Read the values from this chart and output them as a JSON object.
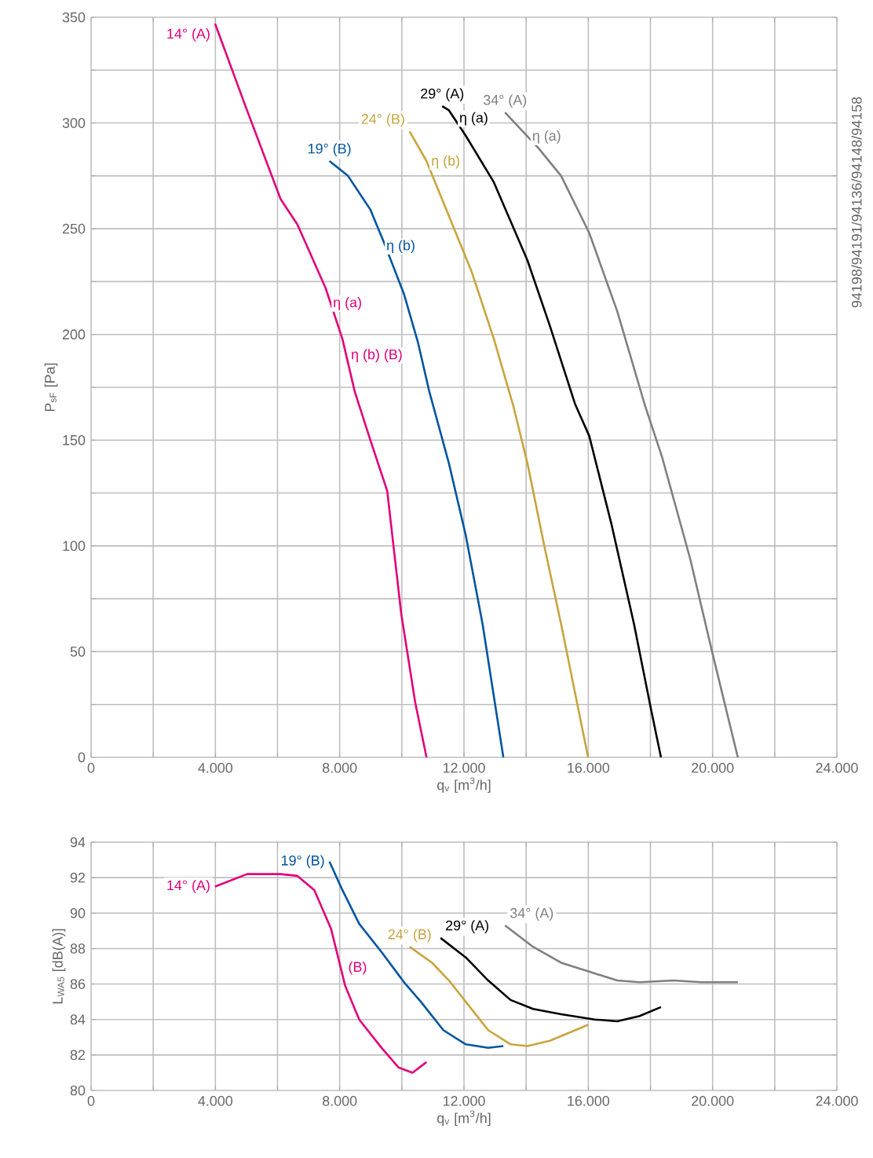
{
  "chart_data": [
    {
      "type": "line",
      "xlabel": "q$_{v}$ [m$^{3}$/h]",
      "ylabel": "P$_{sF}$ [Pa]",
      "grid": true,
      "xlim": [
        0,
        24000
      ],
      "ylim": [
        0,
        350
      ],
      "xticks": [
        0,
        {
          "value": 2000,
          "label": null
        },
        {
          "value": 4000,
          "label": "4.000"
        },
        {
          "value": 6000,
          "label": null
        },
        {
          "value": 8000,
          "label": "8.000"
        },
        {
          "value": 10000,
          "label": null
        },
        {
          "value": 12000,
          "label": "12.000"
        },
        {
          "value": 14000,
          "label": null
        },
        {
          "value": 16000,
          "label": "16.000"
        },
        {
          "value": 18000,
          "label": null
        },
        {
          "value": 20000,
          "label": "20.000"
        },
        {
          "value": 22000,
          "label": null
        },
        {
          "value": 24000,
          "label": "24.000"
        }
      ],
      "yticks": [
        0,
        {
          "value": 25,
          "label": null
        },
        50,
        {
          "value": 75,
          "label": null
        },
        100,
        {
          "value": 125,
          "label": null
        },
        150,
        {
          "value": 175,
          "label": null
        },
        200,
        {
          "value": 225,
          "label": null
        },
        250,
        {
          "value": 275,
          "label": null
        },
        300,
        {
          "value": 325,
          "label": null
        },
        350
      ],
      "series": [
        {
          "name": "14° (A)",
          "color": "#e2007a",
          "x": [
            3990,
            5018,
            6100,
            6640,
            7545,
            8086,
            8484,
            8989,
            9530,
            9980,
            10430,
            10794
          ],
          "values": [
            347,
            306,
            264,
            252,
            222,
            198,
            173,
            150,
            126,
            68,
            26,
            0
          ]
        },
        {
          "name": "19° (B)",
          "color": "#0055a0",
          "x": [
            7671,
            8267,
            8989,
            9440,
            10072,
            10523,
            10884,
            11516,
            12057,
            12599,
            13267
          ],
          "values": [
            282,
            275,
            259,
            243,
            219,
            196,
            173,
            139,
            105,
            63,
            0
          ]
        },
        {
          "name": "24° (B)",
          "color": "#c8a43c",
          "x": [
            10252,
            10794,
            11516,
            12238,
            12960,
            13591,
            14043,
            14584,
            15126,
            15994
          ],
          "values": [
            296,
            282,
            256,
            230,
            198,
            166,
            139,
            100,
            63,
            0
          ]
        },
        {
          "name": "29° (A)",
          "color": "#000000",
          "x": [
            11299,
            11516,
            12057,
            12960,
            14043,
            14765,
            15577,
            16030,
            16750,
            17472,
            18014,
            18339
          ],
          "values": [
            308,
            306,
            294,
            272,
            235,
            204,
            167,
            152,
            110,
            63,
            23,
            0
          ]
        },
        {
          "name": "34° (A)",
          "color": "#808080",
          "x": [
            13321,
            14404,
            15126,
            16030,
            16931,
            17833,
            18375,
            19277,
            19999,
            20812
          ],
          "values": [
            305,
            288,
            275,
            248,
            211,
            166,
            142,
            94,
            49,
            0
          ]
        }
      ],
      "annotations": [
        {
          "text": "η (a)",
          "x": 7725,
          "y": 214.6
        },
        {
          "text": "η (b) (B)",
          "x": 8303,
          "y": 190
        },
        {
          "text": "η (b)",
          "x": 9440,
          "y": 241.6
        },
        {
          "text": "η (b)",
          "x": 10884,
          "y": 281.6
        },
        {
          "text": "η (a)",
          "x": 11787,
          "y": 302
        },
        {
          "text": "η (a)",
          "x": 14133,
          "y": 293.4
        },
        "94198/94191/94136/94148/94158"
      ]
    },
    {
      "type": "line",
      "xlabel": "q$_{v}$ [m$^{3}$/h]",
      "ylabel": "L$_{WA5}$ [dB(A)]",
      "grid": true,
      "xlim": [
        0,
        24000
      ],
      "ylim": [
        80,
        94
      ],
      "xticks": [
        0,
        {
          "value": 2000,
          "label": null
        },
        {
          "value": 4000,
          "label": "4.000"
        },
        {
          "value": 6000,
          "label": null
        },
        {
          "value": 8000,
          "label": "8.000"
        },
        {
          "value": 10000,
          "label": null
        },
        {
          "value": 12000,
          "label": "12.000"
        },
        {
          "value": 14000,
          "label": null
        },
        {
          "value": 16000,
          "label": "16.000"
        },
        {
          "value": 18000,
          "label": null
        },
        {
          "value": 20000,
          "label": "20.000"
        },
        {
          "value": 22000,
          "label": null
        },
        {
          "value": 24000,
          "label": "24.000"
        }
      ],
      "yticks": [
        80,
        82,
        84,
        86,
        88,
        90,
        92,
        94
      ],
      "series": [
        {
          "name": "14° (A)",
          "color": "#e2007a",
          "x": [
            3990,
            5018,
            6100,
            6640,
            7184,
            7725,
            8177,
            8628,
            9350,
            9891,
            10343,
            10794
          ],
          "values": [
            91.5,
            92.2,
            92.2,
            92.1,
            91.3,
            89.1,
            85.9,
            84.0,
            82.4,
            81.3,
            81.0,
            81.6
          ]
        },
        {
          "name": "19° (B)",
          "color": "#0055a0",
          "x": [
            7671,
            8087,
            8628,
            9350,
            10072,
            10613,
            11335,
            12057,
            12779,
            13267
          ],
          "values": [
            92.9,
            91.3,
            89.4,
            87.8,
            86.1,
            85.0,
            83.4,
            82.6,
            82.4,
            82.5
          ]
        },
        {
          "name": "24° (B)",
          "color": "#c8a43c",
          "x": [
            10252,
            10974,
            11516,
            12057,
            12779,
            13501,
            14043,
            14765,
            15994
          ],
          "values": [
            88.1,
            87.2,
            86.2,
            85.0,
            83.4,
            82.6,
            82.5,
            82.8,
            83.7
          ]
        },
        {
          "name": "29° (A)",
          "color": "#000000",
          "x": [
            11245,
            12057,
            12779,
            13501,
            14223,
            15126,
            16209,
            16931,
            17653,
            18339
          ],
          "values": [
            88.6,
            87.5,
            86.2,
            85.1,
            84.6,
            84.3,
            84.0,
            83.9,
            84.2,
            84.7
          ]
        },
        {
          "name": "34° (A)",
          "color": "#808080",
          "x": [
            13321,
            14223,
            15126,
            16030,
            16931,
            17653,
            18736,
            19638,
            20812
          ],
          "values": [
            89.3,
            88.1,
            87.2,
            86.7,
            86.2,
            86.1,
            86.2,
            86.1,
            86.1
          ]
        }
      ],
      "annotations": [
        {
          "text": "(B)",
          "x": 8213,
          "y": 86.9
        }
      ]
    }
  ]
}
